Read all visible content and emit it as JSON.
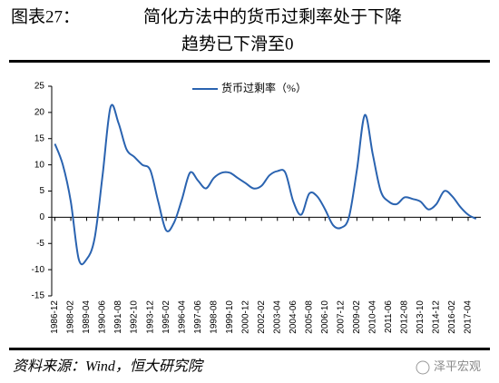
{
  "title_label": "图表27：",
  "chart_data": {
    "type": "line",
    "title": [
      "简化方法中的货币过剩率处于下降",
      "趋势已下滑至0"
    ],
    "categories": [
      "1986-12",
      null,
      "1988-02",
      null,
      "1989-04",
      null,
      "1990-06",
      null,
      "1991-08",
      null,
      "1992-10",
      null,
      "1993-12",
      null,
      "1995-02",
      null,
      "1996-04",
      null,
      "1997-06",
      null,
      "1998-08",
      null,
      "1999-10",
      null,
      "2000-12",
      null,
      "2002-02",
      null,
      "2003-04",
      null,
      "2004-06",
      null,
      "2005-08",
      null,
      "2006-10",
      null,
      "2007-12",
      null,
      "2009-02",
      null,
      "2010-04",
      null,
      "2011-06",
      null,
      "2012-08",
      null,
      "2013-10",
      null,
      "2014-12",
      null,
      "2016-02",
      null,
      "2017-04",
      null
    ],
    "series": [
      {
        "name": "货币过剩率（%）",
        "color": "#2a63b0",
        "values": [
          14,
          10,
          3,
          -8,
          -8,
          -4,
          8,
          21,
          18,
          13,
          11.5,
          10,
          9,
          3,
          -2.5,
          -1,
          3.5,
          8.5,
          7,
          5.5,
          7.5,
          8.5,
          8.5,
          7.5,
          6.5,
          5.5,
          6,
          8,
          8.8,
          8.5,
          3,
          0.5,
          4.5,
          4,
          1.5,
          -1.5,
          -2,
          0,
          9,
          19.5,
          12,
          5,
          3,
          2.5,
          3.8,
          3.5,
          3,
          1.5,
          2.5,
          5,
          4,
          2,
          0.5,
          -0.3
        ]
      }
    ],
    "ylim": [
      -15,
      25
    ],
    "yticks": [
      -15,
      -10,
      -5,
      0,
      5,
      10,
      15,
      20,
      25
    ],
    "grid": false,
    "legend": "top"
  },
  "source": "资料来源：Wind，恒大研究院",
  "watermark": "泽平宏观"
}
